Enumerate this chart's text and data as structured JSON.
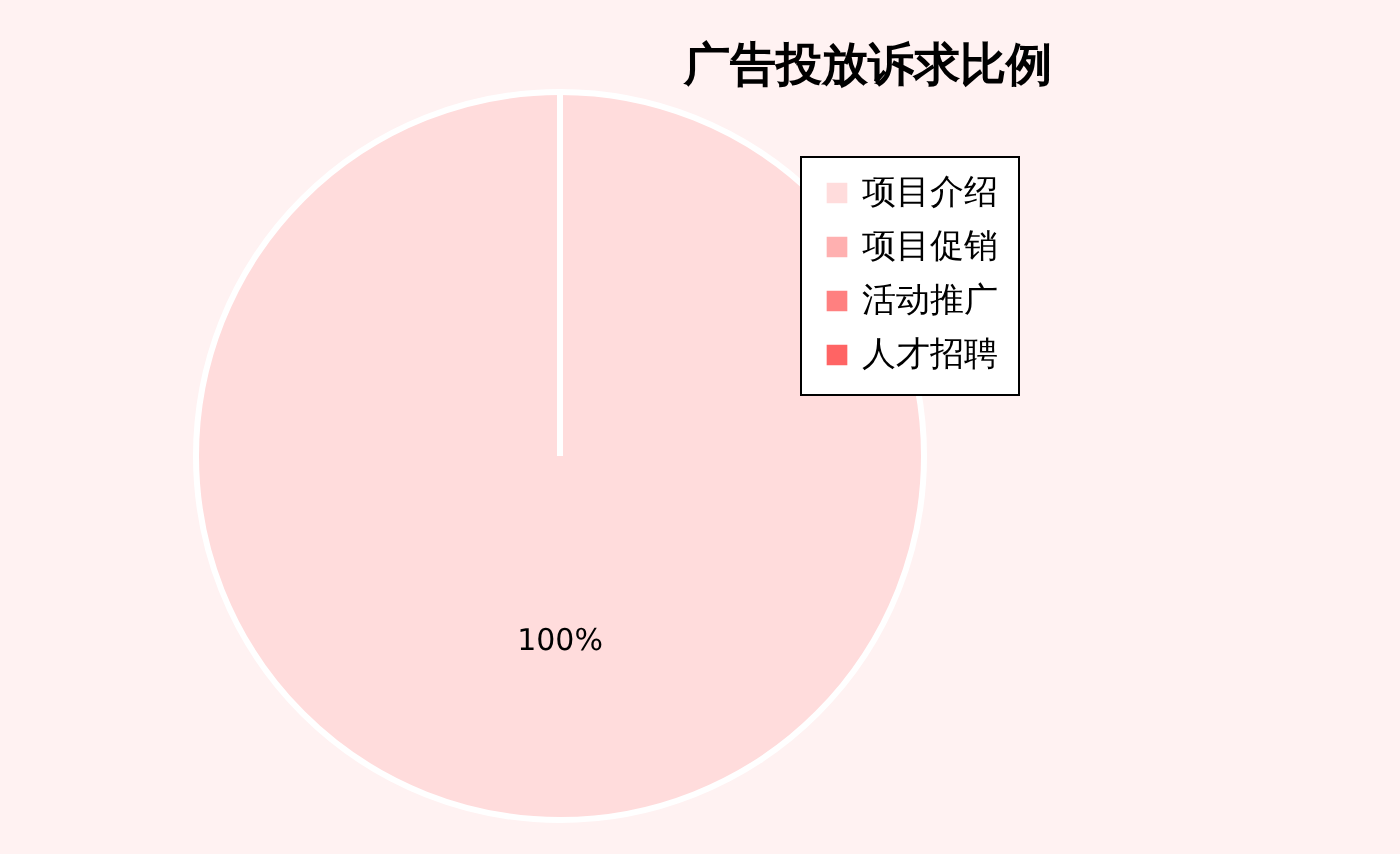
{
  "chart_data": {
    "type": "pie",
    "title": "广告投放诉求比例",
    "categories": [
      "项目介绍",
      "项目促销",
      "活动推广",
      "人才招聘"
    ],
    "values": [
      100,
      0,
      0,
      0
    ],
    "colors": [
      "#ffdcdc",
      "#ffb0b0",
      "#ff8080",
      "#ff6464"
    ],
    "value_labels": [
      "100%",
      null,
      null,
      null
    ],
    "legend": "top right"
  }
}
